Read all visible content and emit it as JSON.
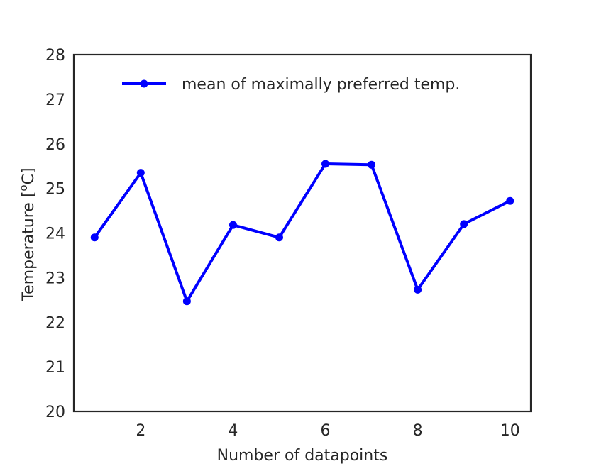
{
  "chart_data": {
    "type": "line",
    "title": "",
    "xlabel": "Number of datapoints",
    "ylabel": "Temperature [",
    "ylabel_superscript": "o",
    "ylabel_suffix": "C]",
    "xlim": [
      0.55,
      10.45
    ],
    "ylim": [
      20,
      28
    ],
    "x_ticks": [
      2,
      4,
      6,
      8,
      10
    ],
    "x_tick_labels": [
      "2",
      "4",
      "6",
      "8",
      "10"
    ],
    "y_ticks": [
      20,
      21,
      22,
      23,
      24,
      25,
      26,
      27,
      28
    ],
    "y_tick_labels": [
      "20",
      "21",
      "22",
      "23",
      "24",
      "25",
      "26",
      "27",
      "28"
    ],
    "grid": false,
    "legend_position": "top-right",
    "series": [
      {
        "name": "mean of maximally preferred temp.",
        "color": "#0000ff",
        "marker": "circle",
        "x": [
          1,
          2,
          3,
          4,
          5,
          6,
          7,
          8,
          9,
          10
        ],
        "values": [
          23.9,
          25.35,
          22.47,
          24.18,
          23.9,
          25.55,
          25.53,
          22.73,
          24.2,
          24.72
        ]
      }
    ]
  }
}
